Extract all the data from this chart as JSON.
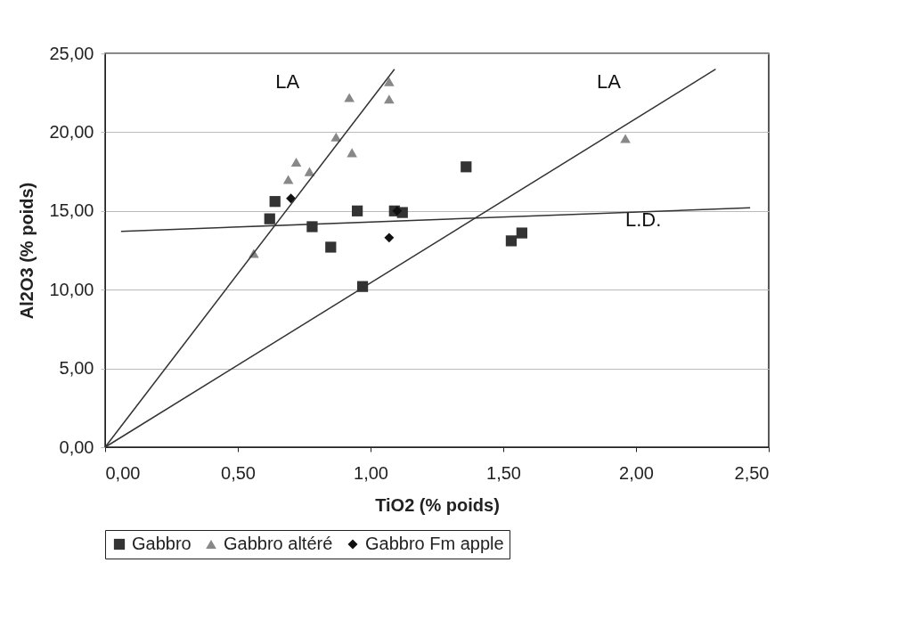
{
  "chart_data": {
    "type": "scatter",
    "xlabel": "TiO2 (% poids)",
    "ylabel": "Al2O3 (% poids)",
    "xlim": [
      0,
      2.5
    ],
    "ylim": [
      0,
      25
    ],
    "xticks": [
      {
        "value": 0,
        "label": "0,00"
      },
      {
        "value": 0.5,
        "label": "0,50"
      },
      {
        "value": 1,
        "label": "1,00"
      },
      {
        "value": 1.5,
        "label": "1,50"
      },
      {
        "value": 2,
        "label": "2,00"
      },
      {
        "value": 2.5,
        "label": "2,50"
      }
    ],
    "yticks": [
      {
        "value": 0,
        "label": "0,00"
      },
      {
        "value": 5,
        "label": "5,00"
      },
      {
        "value": 10,
        "label": "10,00"
      },
      {
        "value": 15,
        "label": "15,00"
      },
      {
        "value": 20,
        "label": "20,00"
      },
      {
        "value": 25,
        "label": "25,00"
      }
    ],
    "grid": "y",
    "legend": "bottom",
    "series": [
      {
        "name": "Gabbro",
        "color": "#333333",
        "marker": "square",
        "x": [
          0.62,
          0.64,
          0.78,
          0.85,
          0.95,
          0.97,
          1.09,
          1.12,
          1.36,
          1.53,
          1.57
        ],
        "values": [
          14.5,
          15.6,
          14.0,
          12.7,
          15.0,
          10.2,
          15.0,
          14.9,
          17.8,
          13.1,
          13.6
        ]
      },
      {
        "name": "Gabbro altéré",
        "color": "#888888",
        "marker": "triangle",
        "x": [
          0.56,
          0.69,
          0.72,
          0.77,
          0.87,
          0.93,
          0.92,
          1.07,
          1.07,
          1.96
        ],
        "values": [
          12.3,
          17.0,
          18.1,
          17.5,
          19.7,
          18.7,
          22.2,
          23.2,
          22.1,
          19.6
        ]
      },
      {
        "name": "Gabbro Fm apple",
        "color": "#111111",
        "marker": "diamond",
        "x": [
          0.7,
          1.07,
          1.1
        ],
        "values": [
          15.8,
          13.3,
          15.0
        ]
      },
      {
        "type": "line",
        "color": "#333333",
        "x": [
          0,
          1.09
        ],
        "values": [
          0,
          24.0
        ]
      },
      {
        "type": "line",
        "color": "#333333",
        "x": [
          0,
          2.3
        ],
        "values": [
          0,
          24.0
        ]
      },
      {
        "type": "line",
        "color": "#333333",
        "x": [
          0.06,
          2.43
        ],
        "values": [
          13.7,
          15.2
        ]
      }
    ],
    "annotations": [
      "LA",
      "LA",
      "L.D."
    ]
  }
}
